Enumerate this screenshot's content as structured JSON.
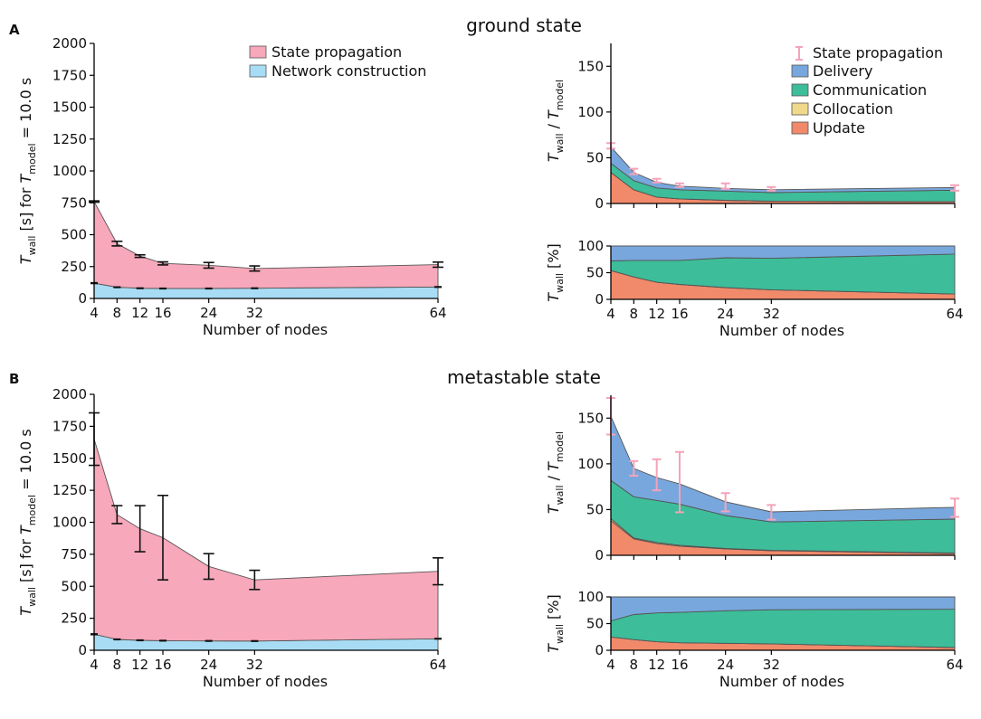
{
  "colors": {
    "state_propagation": "#f7a8ba",
    "network_construction": "#a8dcf5",
    "delivery": "#78a7dd",
    "communication": "#3dbd99",
    "collocation": "#f0d98a",
    "update": "#f08a6a",
    "err_pink": "#f4a3b8"
  },
  "figure": {
    "panels": [
      {
        "letter": "A",
        "title": "ground state"
      },
      {
        "letter": "B",
        "title": "metastable state"
      }
    ],
    "common_xlabel": "Number of nodes",
    "left_ylabel": {
      "main": "T",
      "sub1": "wall",
      "mid": " [s] for ",
      "main2": "T",
      "sub2": "model",
      "tail": " = 10.0 s"
    },
    "rel_ylabel": {
      "main": "T",
      "sub1": "wall",
      "mid": " / ",
      "main2": "T",
      "sub2": "model"
    },
    "pct_ylabel": {
      "main": "T",
      "sub1": "wall",
      "tail": " [%]"
    },
    "left_legend": [
      "State propagation",
      "Network construction"
    ],
    "right_legend": [
      "State propagation",
      "Delivery",
      "Communication",
      "Collocation",
      "Update"
    ]
  },
  "chart_data": [
    {
      "id": "A-left",
      "type": "area",
      "title": "ground state",
      "xlabel": "Number of nodes",
      "ylabel": "T_wall [s] for T_model = 10.0 s",
      "x": [
        4,
        8,
        12,
        16,
        24,
        32,
        64
      ],
      "xticks": [
        4,
        8,
        12,
        16,
        24,
        32,
        64
      ],
      "ylim": [
        0,
        2000
      ],
      "yticks": [
        0,
        250,
        500,
        750,
        1000,
        1250,
        1500,
        1750,
        2000
      ],
      "series": [
        {
          "name": "Network construction",
          "values": [
            120,
            88,
            80,
            78,
            78,
            80,
            90
          ]
        },
        {
          "name": "State propagation",
          "values": [
            640,
            342,
            252,
            197,
            182,
            155,
            175
          ]
        }
      ],
      "total_err": {
        "center": [
          760,
          430,
          332,
          275,
          260,
          235,
          265
        ],
        "half": [
          5,
          18,
          10,
          12,
          22,
          20,
          20
        ]
      },
      "nc_err": {
        "center": [
          120,
          88,
          80,
          78,
          78,
          80,
          90
        ],
        "half": [
          3,
          2,
          2,
          2,
          2,
          2,
          2
        ]
      }
    },
    {
      "id": "A-right-top",
      "type": "area",
      "ylabel": "T_wall / T_model",
      "x": [
        4,
        8,
        12,
        16,
        24,
        32,
        64
      ],
      "ylim": [
        0,
        175
      ],
      "yticks": [
        0,
        50,
        100,
        150
      ],
      "series": [
        {
          "name": "Update",
          "values": [
            34,
            15,
            7,
            5,
            3.5,
            2.5,
            2
          ]
        },
        {
          "name": "Collocation",
          "values": [
            0,
            0,
            0,
            0,
            0,
            0,
            0
          ]
        },
        {
          "name": "Communication",
          "values": [
            10,
            10,
            10,
            10,
            10,
            9.5,
            12.5
          ]
        },
        {
          "name": "Delivery",
          "values": [
            18,
            9,
            6,
            4,
            3,
            3,
            3
          ]
        }
      ],
      "state_propagation_err": {
        "center": [
          63,
          35,
          25,
          20,
          19,
          16,
          17
        ],
        "half": [
          3,
          3,
          2,
          2,
          3,
          2,
          3
        ]
      }
    },
    {
      "id": "A-right-bottom",
      "type": "area",
      "ylabel": "T_wall [%]",
      "xlabel": "Number of nodes",
      "x": [
        4,
        8,
        12,
        16,
        24,
        32,
        64
      ],
      "xticks": [
        4,
        8,
        12,
        16,
        24,
        32,
        64
      ],
      "ylim": [
        0,
        100
      ],
      "yticks": [
        0,
        50,
        100
      ],
      "series": [
        {
          "name": "Update",
          "values": [
            54,
            42,
            32,
            28,
            22,
            18,
            10
          ]
        },
        {
          "name": "Collocation",
          "values": [
            0,
            0,
            0,
            0,
            0,
            0,
            0
          ]
        },
        {
          "name": "Communication",
          "values": [
            18,
            31,
            41,
            45,
            56,
            59,
            75
          ]
        },
        {
          "name": "Delivery",
          "values": [
            28,
            27,
            27,
            27,
            22,
            23,
            15
          ]
        }
      ]
    },
    {
      "id": "B-left",
      "type": "area",
      "title": "metastable state",
      "xlabel": "Number of nodes",
      "ylabel": "T_wall [s] for T_model = 10.0 s",
      "x": [
        4,
        8,
        12,
        16,
        24,
        32,
        64
      ],
      "xticks": [
        4,
        8,
        12,
        16,
        24,
        32,
        64
      ],
      "ylim": [
        0,
        2000
      ],
      "yticks": [
        0,
        250,
        500,
        750,
        1000,
        1250,
        1500,
        1750,
        2000
      ],
      "series": [
        {
          "name": "Network construction",
          "values": [
            125,
            85,
            78,
            75,
            73,
            72,
            90
          ]
        },
        {
          "name": "State propagation",
          "values": [
            1525,
            975,
            872,
            805,
            582,
            478,
            527
          ]
        }
      ],
      "total_err": {
        "center": [
          1650,
          1060,
          950,
          880,
          655,
          550,
          617
        ],
        "half": [
          205,
          70,
          180,
          330,
          100,
          75,
          105
        ]
      },
      "nc_err": {
        "center": [
          125,
          85,
          78,
          75,
          73,
          72,
          90
        ],
        "half": [
          3,
          2,
          2,
          2,
          2,
          2,
          2
        ]
      }
    },
    {
      "id": "B-right-top",
      "type": "area",
      "ylabel": "T_wall / T_model",
      "x": [
        4,
        8,
        12,
        16,
        24,
        32,
        64
      ],
      "ylim": [
        0,
        175
      ],
      "yticks": [
        0,
        50,
        100,
        150
      ],
      "series": [
        {
          "name": "Update",
          "values": [
            38,
            18,
            13,
            10,
            7,
            5,
            2
          ]
        },
        {
          "name": "Collocation",
          "values": [
            2,
            1,
            1,
            1,
            0.5,
            0.5,
            0.5
          ]
        },
        {
          "name": "Communication",
          "values": [
            42,
            45,
            46,
            45,
            36,
            31,
            37
          ]
        },
        {
          "name": "Delivery",
          "values": [
            70,
            31,
            25,
            22,
            15,
            11,
            13
          ]
        }
      ],
      "state_propagation_err": {
        "center": [
          152,
          95,
          88,
          80,
          58,
          47,
          52
        ],
        "half": [
          20,
          8,
          17,
          33,
          10,
          8,
          10
        ]
      }
    },
    {
      "id": "B-right-bottom",
      "type": "area",
      "ylabel": "T_wall [%]",
      "xlabel": "Number of nodes",
      "x": [
        4,
        8,
        12,
        16,
        24,
        32,
        64
      ],
      "xticks": [
        4,
        8,
        12,
        16,
        24,
        32,
        64
      ],
      "ylim": [
        0,
        100
      ],
      "yticks": [
        0,
        50,
        100
      ],
      "series": [
        {
          "name": "Update",
          "values": [
            25,
            20,
            16,
            14,
            13,
            12,
            5
          ]
        },
        {
          "name": "Collocation",
          "values": [
            0,
            0,
            0,
            0,
            0,
            0,
            0
          ]
        },
        {
          "name": "Communication",
          "values": [
            30,
            47,
            54,
            57,
            61,
            64,
            72
          ]
        },
        {
          "name": "Delivery",
          "values": [
            45,
            33,
            30,
            29,
            26,
            24,
            23
          ]
        }
      ]
    }
  ]
}
